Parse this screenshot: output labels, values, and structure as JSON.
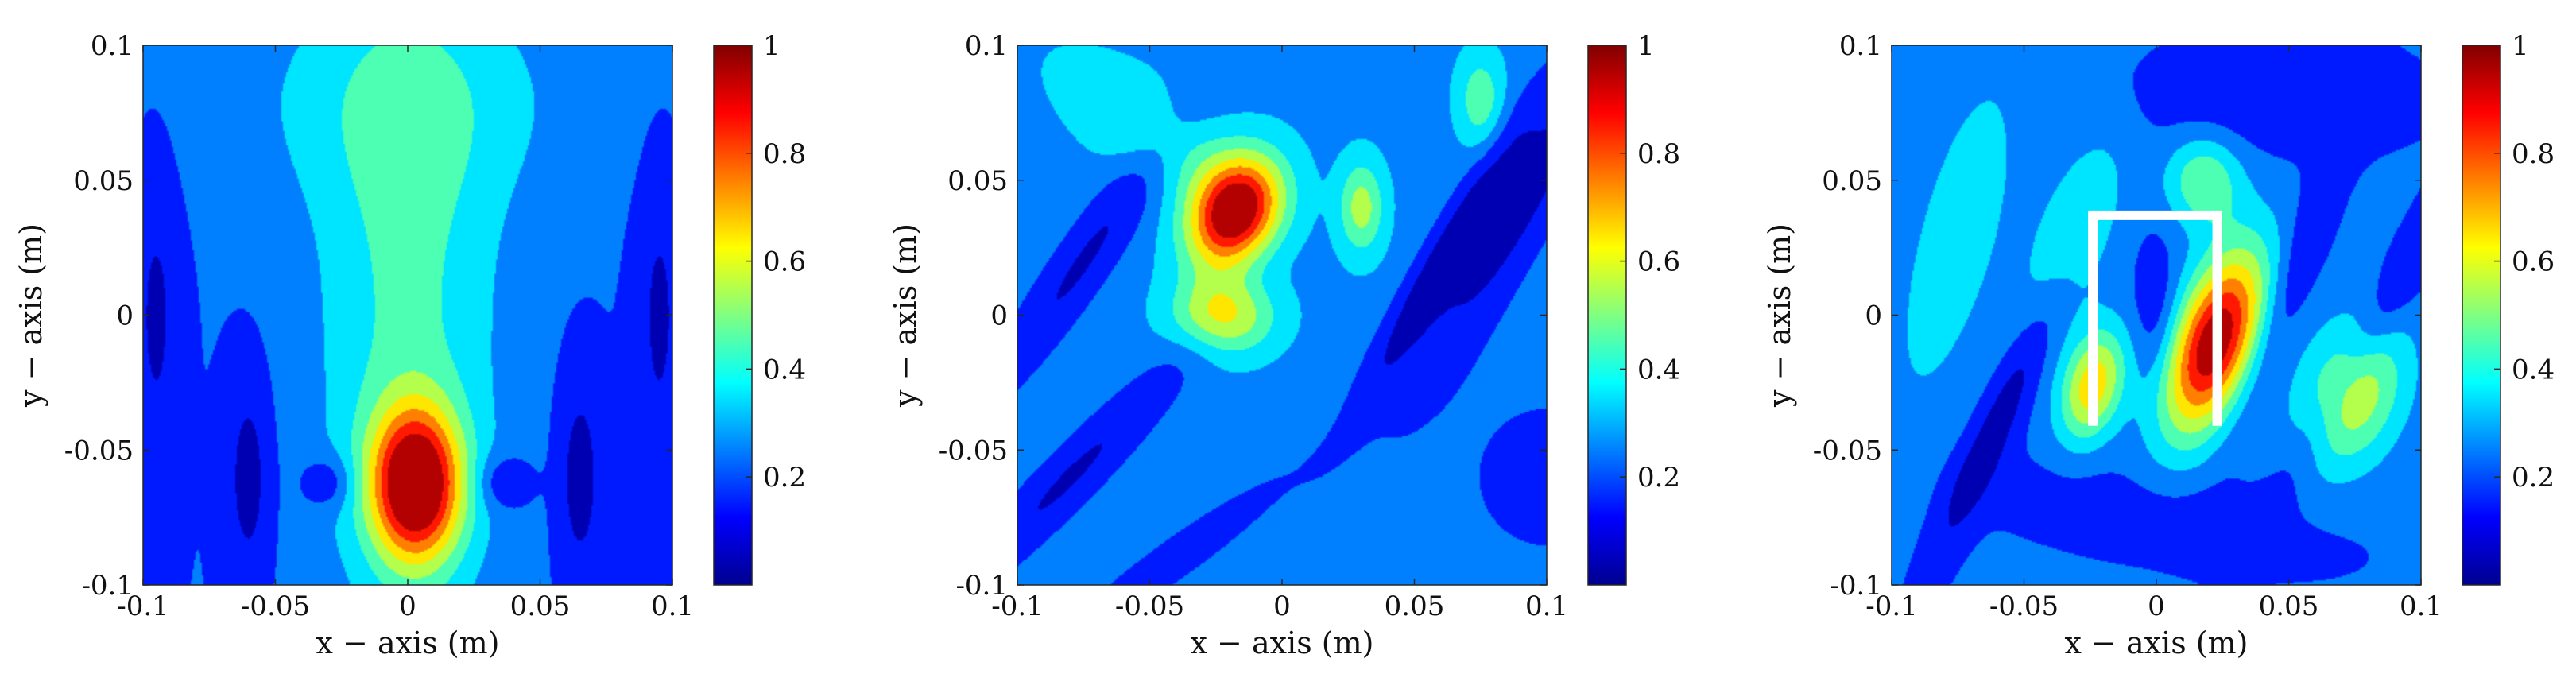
{
  "figure": {
    "colormap": "jet",
    "colorbar_ticks": [
      "0.2",
      "0.4",
      "0.6",
      "0.8",
      "1"
    ],
    "colorbar_range": [
      0.0,
      1.0
    ]
  },
  "chart_data": [
    {
      "type": "heatmap",
      "title": "",
      "xlabel": "x − axis (m)",
      "ylabel": "y − axis (m)",
      "xlim": [
        -0.1,
        0.1
      ],
      "ylim": [
        -0.1,
        0.1
      ],
      "x_ticks": [
        "-0.1",
        "-0.05",
        "0",
        "0.05",
        "0.1"
      ],
      "y_ticks": [
        "-0.1",
        "-0.05",
        "0",
        "0.05",
        "0.1"
      ],
      "background_level": 0.2,
      "levels": [
        0.1,
        0.2,
        0.3,
        0.4,
        0.5,
        0.6,
        0.7,
        0.8,
        0.9
      ],
      "blobs": [
        {
          "x": 0.003,
          "y": -0.063,
          "sx": 0.012,
          "sy": 0.02,
          "angle": 0,
          "amp": 0.8
        },
        {
          "x": 0.0,
          "y": 0.0,
          "sx": 0.025,
          "sy": 0.09,
          "angle": 0,
          "amp": 0.22
        },
        {
          "x": 0.0,
          "y": 0.08,
          "sx": 0.05,
          "sy": 0.03,
          "angle": 0,
          "amp": 0.12
        },
        {
          "x": -0.06,
          "y": -0.06,
          "sx": 0.006,
          "sy": 0.028,
          "angle": 0,
          "amp": -0.15
        },
        {
          "x": 0.065,
          "y": -0.06,
          "sx": 0.006,
          "sy": 0.028,
          "angle": 0,
          "amp": -0.15
        },
        {
          "x": -0.03,
          "y": -0.062,
          "sx": 0.007,
          "sy": 0.007,
          "angle": 0,
          "amp": -0.15
        },
        {
          "x": 0.036,
          "y": -0.062,
          "sx": 0.007,
          "sy": 0.007,
          "angle": 0,
          "amp": -0.15
        },
        {
          "x": -0.095,
          "y": 0.0,
          "sx": 0.006,
          "sy": 0.04,
          "angle": 0,
          "amp": -0.12
        },
        {
          "x": 0.095,
          "y": 0.0,
          "sx": 0.006,
          "sy": 0.04,
          "angle": 0,
          "amp": -0.12
        }
      ],
      "overlay": null
    },
    {
      "type": "heatmap",
      "title": "",
      "xlabel": "x − axis (m)",
      "ylabel": "y − axis (m)",
      "xlim": [
        -0.1,
        0.1
      ],
      "ylim": [
        -0.1,
        0.1
      ],
      "x_ticks": [
        "-0.1",
        "-0.05",
        "0",
        "0.05",
        "0.1"
      ],
      "y_ticks": [
        "-0.1",
        "-0.05",
        "0",
        "0.05",
        "0.1"
      ],
      "background_level": 0.27,
      "levels": [
        0.1,
        0.2,
        0.3,
        0.4,
        0.5,
        0.6,
        0.7,
        0.8,
        0.9
      ],
      "blobs": [
        {
          "x": -0.018,
          "y": 0.038,
          "sx": 0.011,
          "sy": 0.015,
          "angle": -30,
          "amp": 0.75
        },
        {
          "x": -0.022,
          "y": 0.0,
          "sx": 0.013,
          "sy": 0.01,
          "angle": 0,
          "amp": 0.38
        },
        {
          "x": 0.03,
          "y": 0.04,
          "sx": 0.006,
          "sy": 0.012,
          "angle": 0,
          "amp": 0.28
        },
        {
          "x": -0.045,
          "y": 0.065,
          "sx": 0.03,
          "sy": 0.012,
          "angle": -35,
          "amp": 0.15
        },
        {
          "x": 0.075,
          "y": 0.08,
          "sx": 0.006,
          "sy": 0.012,
          "angle": 0,
          "amp": 0.2
        },
        {
          "x": 0.09,
          "y": 0.04,
          "sx": 0.01,
          "sy": 0.06,
          "angle": -30,
          "amp": -0.2
        },
        {
          "x": 0.06,
          "y": 0.02,
          "sx": 0.006,
          "sy": 0.05,
          "angle": -30,
          "amp": -0.2
        },
        {
          "x": -0.075,
          "y": 0.02,
          "sx": 0.008,
          "sy": 0.05,
          "angle": -35,
          "amp": -0.18
        },
        {
          "x": -0.08,
          "y": -0.06,
          "sx": 0.008,
          "sy": 0.05,
          "angle": -45,
          "amp": -0.18
        },
        {
          "x": -0.04,
          "y": -0.09,
          "sx": 0.006,
          "sy": 0.04,
          "angle": -55,
          "amp": -0.15
        },
        {
          "x": 0.1,
          "y": -0.06,
          "sx": 0.03,
          "sy": 0.03,
          "angle": 0,
          "amp": -0.1
        }
      ],
      "overlay": null
    },
    {
      "type": "heatmap",
      "title": "",
      "xlabel": "x − axis (m)",
      "ylabel": "y − axis (m)",
      "xlim": [
        -0.1,
        0.1
      ],
      "ylim": [
        -0.1,
        0.1
      ],
      "x_ticks": [
        "-0.1",
        "-0.05",
        "0",
        "0.05",
        "0.1"
      ],
      "y_ticks": [
        "-0.1",
        "-0.05",
        "0",
        "0.05",
        "0.1"
      ],
      "background_level": 0.22,
      "levels": [
        0.1,
        0.2,
        0.3,
        0.4,
        0.5,
        0.6,
        0.7,
        0.8,
        0.9
      ],
      "blobs": [
        {
          "x": 0.022,
          "y": -0.01,
          "sx": 0.011,
          "sy": 0.025,
          "angle": -20,
          "amp": 0.78
        },
        {
          "x": -0.024,
          "y": -0.026,
          "sx": 0.008,
          "sy": 0.015,
          "angle": -15,
          "amp": 0.45
        },
        {
          "x": 0.074,
          "y": -0.029,
          "sx": 0.013,
          "sy": 0.02,
          "angle": -20,
          "amp": 0.38
        },
        {
          "x": 0.018,
          "y": 0.05,
          "sx": 0.01,
          "sy": 0.012,
          "angle": 0,
          "amp": 0.28
        },
        {
          "x": -0.03,
          "y": 0.03,
          "sx": 0.01,
          "sy": 0.03,
          "angle": -20,
          "amp": 0.18
        },
        {
          "x": -0.075,
          "y": 0.03,
          "sx": 0.015,
          "sy": 0.06,
          "angle": -15,
          "amp": 0.12
        },
        {
          "x": 0.04,
          "y": 0.08,
          "sx": 0.04,
          "sy": 0.015,
          "angle": 0,
          "amp": -0.1
        },
        {
          "x": -0.06,
          "y": -0.04,
          "sx": 0.006,
          "sy": 0.045,
          "angle": -25,
          "amp": -0.18
        },
        {
          "x": 0.0,
          "y": 0.0,
          "sx": 0.006,
          "sy": 0.02,
          "angle": 0,
          "amp": -0.12
        },
        {
          "x": 0.05,
          "y": 0.01,
          "sx": 0.006,
          "sy": 0.04,
          "angle": -20,
          "amp": -0.12
        },
        {
          "x": 0.085,
          "y": 0.0,
          "sx": 0.006,
          "sy": 0.06,
          "angle": -30,
          "amp": -0.12
        },
        {
          "x": 0.0,
          "y": -0.075,
          "sx": 0.05,
          "sy": 0.012,
          "angle": -10,
          "amp": -0.08
        }
      ],
      "overlay": {
        "color": "#ffffff",
        "points": [
          [
            -0.024,
            -0.041
          ],
          [
            -0.024,
            0.037
          ],
          [
            0.023,
            0.037
          ],
          [
            0.023,
            -0.041
          ]
        ]
      }
    }
  ]
}
